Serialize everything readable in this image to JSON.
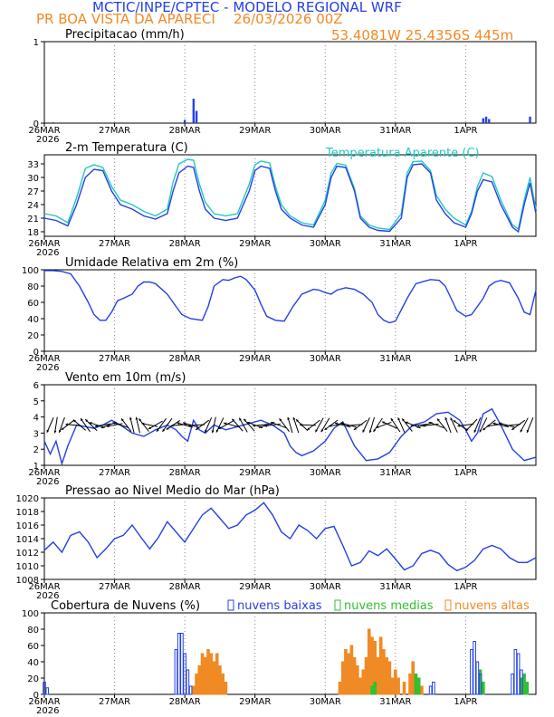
{
  "header": {
    "title": "MCTIC/INPE/CPTEC - MODELO REGIONAL WRF",
    "location": "PR BOA VISTA DA APARECI",
    "run": "26/03/2026 00Z",
    "coords": "53.4081W 25.4356S 445m"
  },
  "x_axis": {
    "labels": [
      "26MAR",
      "27MAR",
      "28MAR",
      "29MAR",
      "30MAR",
      "31MAR",
      "1APR"
    ],
    "year": "2026",
    "hours": 168
  },
  "colors": {
    "line": "#2440e6",
    "apparent": "#20c8c0",
    "low": "#2440e6",
    "mid": "#30c030",
    "high": "#f08a24",
    "arrow": "#000000"
  },
  "chart_data": [
    {
      "id": "precip",
      "type": "bar",
      "title": "Precipitacao (mm/h)",
      "ylim": [
        0,
        1
      ],
      "yticks": [
        0,
        1
      ],
      "points": [
        [
          3,
          0.01
        ],
        [
          48,
          0.04
        ],
        [
          51,
          0.3
        ],
        [
          52,
          0.15
        ],
        [
          150,
          0.06
        ],
        [
          151,
          0.08
        ],
        [
          152,
          0.05
        ],
        [
          166,
          0.08
        ]
      ]
    },
    {
      "id": "temp",
      "type": "line",
      "title": "2-m Temperatura (C)",
      "legend": "Temperatura Aparente (C)",
      "ylim": [
        17,
        35
      ],
      "yticks": [
        18,
        21,
        24,
        27,
        30,
        33
      ],
      "series": [
        {
          "name": "Temperatura",
          "x": [
            0,
            4,
            8,
            11,
            14,
            17,
            20,
            23,
            26,
            30,
            34,
            38,
            42,
            44,
            46,
            49,
            51,
            53,
            55,
            58,
            62,
            66,
            70,
            72,
            74,
            77,
            79,
            81,
            84,
            88,
            92,
            96,
            98,
            100,
            103,
            106,
            108,
            111,
            114,
            118,
            122,
            124,
            126,
            129,
            132,
            134,
            137,
            140,
            144,
            146,
            148,
            150,
            153,
            156,
            160,
            162,
            164,
            166,
            168
          ],
          "values": [
            21,
            20.5,
            19.3,
            24,
            30,
            31.8,
            31.5,
            27,
            24,
            23,
            21.5,
            20.8,
            22,
            27,
            31,
            32.5,
            32.2,
            27,
            23,
            21,
            20.5,
            21,
            27,
            31.5,
            32.5,
            32,
            27,
            23,
            21,
            19.5,
            19,
            24,
            30,
            32.5,
            32.2,
            27,
            21,
            19,
            18.3,
            18.1,
            21,
            30,
            32.8,
            33,
            31,
            25,
            22,
            20,
            19,
            22,
            27,
            29.5,
            29,
            24,
            19,
            18,
            24,
            28.8,
            22
          ]
        },
        {
          "name": "Temperatura Aparente",
          "x": [
            0,
            4,
            8,
            11,
            14,
            17,
            20,
            23,
            26,
            30,
            34,
            38,
            42,
            44,
            46,
            49,
            51,
            53,
            55,
            58,
            62,
            66,
            70,
            72,
            74,
            77,
            79,
            81,
            84,
            88,
            92,
            96,
            98,
            100,
            103,
            106,
            108,
            111,
            114,
            118,
            122,
            124,
            126,
            129,
            132,
            134,
            137,
            140,
            144,
            146,
            148,
            150,
            153,
            156,
            160,
            162,
            164,
            166,
            168
          ],
          "values": [
            22,
            21.5,
            20,
            25.5,
            32,
            32.8,
            32.2,
            28,
            25,
            24,
            22.5,
            21.5,
            23,
            29,
            33,
            34,
            33.8,
            28.5,
            24.5,
            22,
            21.5,
            22,
            28.5,
            32.8,
            33.6,
            33.2,
            28,
            24,
            21.5,
            20,
            19.5,
            25,
            31,
            33.1,
            32.7,
            27.5,
            21.5,
            19.5,
            18.8,
            18.5,
            22,
            31,
            33.5,
            33.6,
            31.5,
            26,
            23,
            21,
            19.5,
            22.5,
            28,
            31,
            30.2,
            25,
            19.5,
            18.6,
            25,
            30,
            23
          ]
        }
      ]
    },
    {
      "id": "rh",
      "type": "line",
      "title": "Umidade Relativa em 2m (%)",
      "ylim": [
        0,
        100
      ],
      "yticks": [
        0,
        20,
        40,
        60,
        80,
        100
      ],
      "series": [
        {
          "name": "Umidade",
          "x": [
            0,
            3,
            6,
            9,
            12,
            15,
            17,
            19,
            21,
            23,
            25,
            27,
            30,
            32,
            34,
            36,
            38,
            42,
            45,
            47,
            50,
            54,
            56,
            58,
            61,
            63,
            65,
            67,
            69,
            72,
            74,
            76,
            79,
            82,
            85,
            88,
            90,
            92,
            94,
            96,
            98,
            100,
            103,
            106,
            109,
            112,
            114,
            116,
            118,
            120,
            124,
            127,
            130,
            132,
            135,
            137,
            139,
            141,
            144,
            146,
            148,
            150,
            152,
            154,
            156,
            159,
            162,
            164,
            166,
            168
          ],
          "values": [
            99,
            99,
            98,
            95,
            80,
            60,
            45,
            38,
            38,
            48,
            62,
            65,
            70,
            80,
            85,
            85,
            83,
            70,
            55,
            45,
            40,
            38,
            55,
            80,
            88,
            87,
            90,
            92,
            88,
            75,
            58,
            43,
            38,
            37,
            55,
            70,
            73,
            76,
            75,
            72,
            70,
            75,
            78,
            76,
            70,
            60,
            45,
            38,
            35,
            37,
            65,
            83,
            86,
            88,
            87,
            80,
            65,
            50,
            43,
            45,
            55,
            65,
            80,
            85,
            87,
            84,
            65,
            48,
            45,
            75
          ]
        }
      ]
    },
    {
      "id": "wind",
      "type": "line",
      "title": "Vento em 10m (m/s)",
      "ylim": [
        1,
        6
      ],
      "yticks": [
        1,
        2,
        3,
        4,
        5,
        6
      ],
      "series": [
        {
          "name": "Vento",
          "x": [
            0,
            2,
            4,
            6,
            8,
            11,
            14,
            17,
            20,
            23,
            26,
            30,
            34,
            38,
            42,
            45,
            47,
            49,
            51,
            53,
            55,
            58,
            62,
            66,
            70,
            74,
            78,
            82,
            84,
            86,
            88,
            92,
            96,
            99,
            102,
            106,
            110,
            114,
            118,
            122,
            126,
            130,
            134,
            138,
            142,
            144,
            146,
            148,
            150,
            153,
            156,
            160,
            164,
            168
          ],
          "values": [
            2.5,
            1.7,
            2.5,
            1.1,
            2.2,
            3.5,
            3.4,
            3.3,
            3.5,
            3.8,
            3.5,
            3.0,
            2.8,
            3.2,
            3.5,
            3.2,
            2.8,
            2.5,
            3.8,
            3.2,
            3.0,
            3.5,
            3.2,
            3.4,
            3.6,
            3.8,
            3.5,
            3.0,
            2.2,
            1.8,
            1.6,
            1.9,
            2.5,
            3.3,
            3.7,
            2.2,
            1.3,
            1.4,
            1.8,
            2.8,
            3.5,
            3.7,
            4.2,
            4.3,
            3.8,
            3.2,
            2.5,
            3.0,
            4.2,
            4.5,
            3.5,
            2.0,
            1.3,
            1.5
          ]
        }
      ]
    },
    {
      "id": "slp",
      "type": "line",
      "title": "Pressao ao Nivel Medio do Mar (hPa)",
      "ylim": [
        1008,
        1020
      ],
      "yticks": [
        1008,
        1010,
        1012,
        1014,
        1016,
        1018,
        1020
      ],
      "series": [
        {
          "name": "Pressao",
          "x": [
            0,
            3,
            6,
            9,
            12,
            15,
            18,
            21,
            24,
            27,
            30,
            33,
            36,
            39,
            42,
            45,
            48,
            51,
            54,
            57,
            60,
            63,
            66,
            69,
            72,
            75,
            78,
            81,
            84,
            87,
            90,
            93,
            96,
            99,
            102,
            105,
            108,
            111,
            114,
            117,
            120,
            123,
            126,
            129,
            132,
            135,
            138,
            141,
            144,
            147,
            150,
            153,
            156,
            159,
            162,
            165,
            168
          ],
          "values": [
            1012.3,
            1013.5,
            1012.0,
            1014.5,
            1015.0,
            1013.5,
            1011.2,
            1012.5,
            1014.0,
            1014.5,
            1016.0,
            1014.2,
            1012.5,
            1014.2,
            1016.5,
            1015.0,
            1013.5,
            1015.5,
            1017.5,
            1018.5,
            1017.0,
            1015.5,
            1016.0,
            1017.5,
            1018.2,
            1019.3,
            1017.5,
            1015.0,
            1014.0,
            1016.0,
            1015.2,
            1014.0,
            1015.5,
            1015.8,
            1013.0,
            1010.0,
            1010.5,
            1012.2,
            1011.5,
            1012.5,
            1011.0,
            1009.4,
            1010.0,
            1011.8,
            1012.3,
            1011.8,
            1010.2,
            1009.3,
            1009.8,
            1010.8,
            1012.5,
            1013.0,
            1012.5,
            1011.2,
            1010.5,
            1010.5,
            1011.2
          ]
        }
      ]
    },
    {
      "id": "clouds",
      "type": "bar",
      "title": "Cobertura de Nuvens (%)",
      "legend": [
        "nuvens baixas",
        "nuvens medias",
        "nuvens altas"
      ],
      "ylim": [
        0,
        100
      ],
      "yticks": [
        0,
        20,
        40,
        60,
        80,
        100
      ],
      "low": [
        [
          0,
          15
        ],
        [
          1,
          8
        ],
        [
          45,
          55
        ],
        [
          46,
          75
        ],
        [
          47,
          75
        ],
        [
          48,
          50
        ],
        [
          49,
          30
        ],
        [
          50,
          10
        ],
        [
          132,
          10
        ],
        [
          133,
          15
        ],
        [
          146,
          55
        ],
        [
          147,
          65
        ],
        [
          148,
          40
        ],
        [
          149,
          25
        ],
        [
          160,
          25
        ],
        [
          161,
          55
        ],
        [
          162,
          50
        ],
        [
          163,
          30
        ]
      ],
      "mid": [
        [
          112,
          10
        ],
        [
          113,
          15
        ],
        [
          127,
          25
        ],
        [
          128,
          20
        ],
        [
          149,
          30
        ],
        [
          150,
          15
        ],
        [
          163,
          20
        ],
        [
          164,
          25
        ],
        [
          165,
          15
        ]
      ],
      "high": [
        [
          51,
          10
        ],
        [
          52,
          25
        ],
        [
          53,
          35
        ],
        [
          54,
          50
        ],
        [
          55,
          45
        ],
        [
          56,
          55
        ],
        [
          57,
          50
        ],
        [
          58,
          40
        ],
        [
          59,
          50
        ],
        [
          60,
          35
        ],
        [
          61,
          25
        ],
        [
          62,
          15
        ],
        [
          101,
          15
        ],
        [
          102,
          40
        ],
        [
          103,
          55
        ],
        [
          104,
          50
        ],
        [
          105,
          60
        ],
        [
          106,
          45
        ],
        [
          107,
          35
        ],
        [
          108,
          20
        ],
        [
          109,
          30
        ],
        [
          110,
          45
        ],
        [
          111,
          80
        ],
        [
          112,
          70
        ],
        [
          113,
          65
        ],
        [
          114,
          45
        ],
        [
          115,
          70
        ],
        [
          116,
          55
        ],
        [
          117,
          45
        ],
        [
          118,
          40
        ],
        [
          119,
          20
        ],
        [
          120,
          30
        ],
        [
          121,
          20
        ],
        [
          123,
          15
        ],
        [
          125,
          25
        ],
        [
          126,
          40
        ],
        [
          129,
          10
        ]
      ]
    }
  ]
}
